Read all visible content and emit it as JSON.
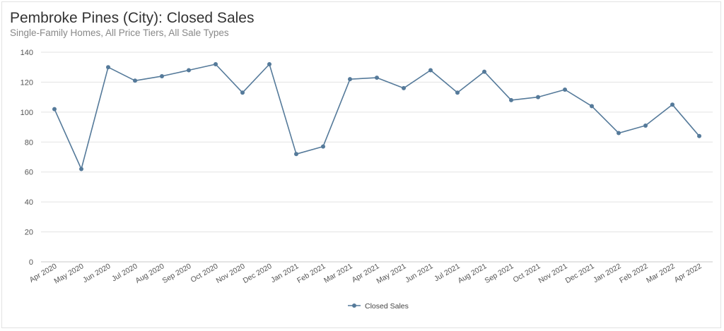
{
  "chart_data": {
    "type": "line",
    "title": "Pembroke Pines (City): Closed Sales",
    "subtitle": "Single-Family Homes, All Price Tiers, All Sale Types",
    "xlabel": "",
    "ylabel": "",
    "ylim": [
      0,
      140
    ],
    "yticks": [
      0,
      20,
      40,
      60,
      80,
      100,
      120,
      140
    ],
    "grid": true,
    "legend_position": "bottom-center",
    "categories": [
      "Apr 2020",
      "May 2020",
      "Jun 2020",
      "Jul 2020",
      "Aug 2020",
      "Sep 2020",
      "Oct 2020",
      "Nov 2020",
      "Dec 2020",
      "Jan 2021",
      "Feb 2021",
      "Mar 2021",
      "Apr 2021",
      "May 2021",
      "Jun 2021",
      "Jul 2021",
      "Aug 2021",
      "Sep 2021",
      "Oct 2021",
      "Nov 2021",
      "Dec 2021",
      "Jan 2022",
      "Feb 2022",
      "Mar 2022",
      "Apr 2022"
    ],
    "series": [
      {
        "name": "Closed Sales",
        "color": "#557a9a",
        "values": [
          102,
          62,
          130,
          121,
          124,
          128,
          132,
          113,
          132,
          72,
          77,
          122,
          123,
          116,
          128,
          113,
          127,
          108,
          110,
          115,
          104,
          86,
          91,
          105,
          84
        ]
      }
    ]
  }
}
